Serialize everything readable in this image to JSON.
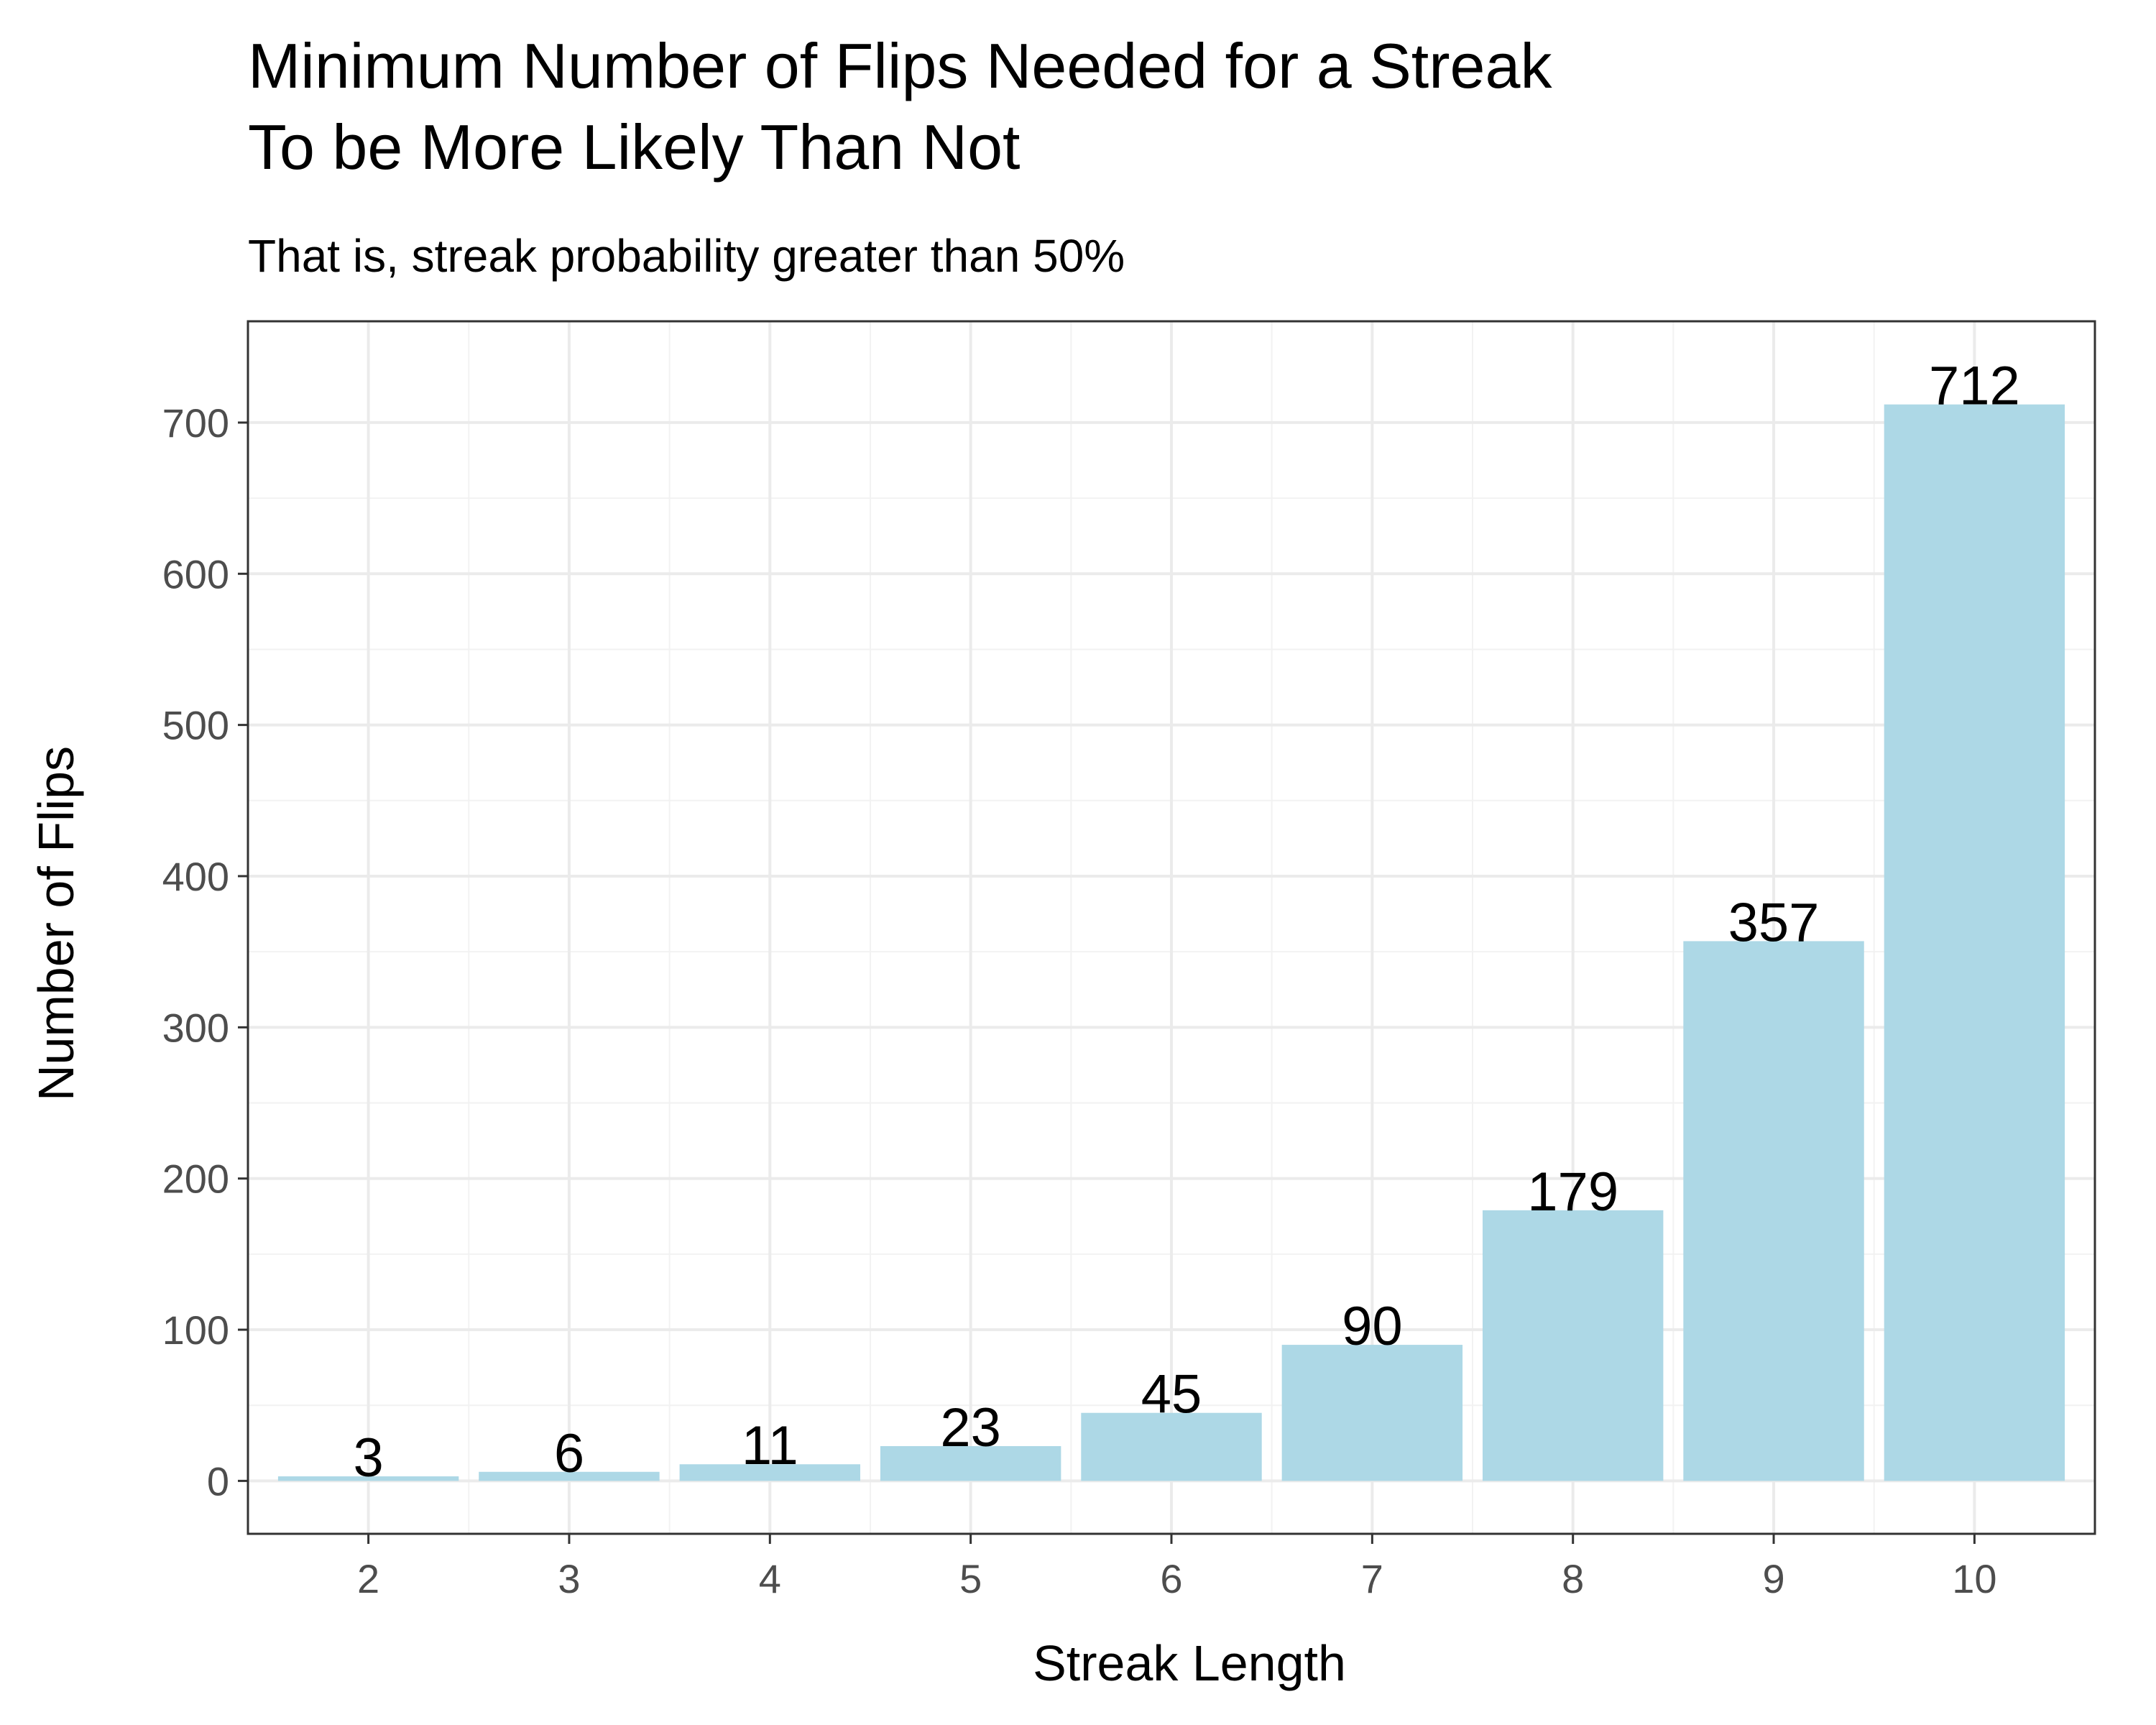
{
  "chart_data": {
    "type": "bar",
    "title_lines": [
      "Minimum Number of Flips Needed for a Streak",
      "To be More Likely Than Not"
    ],
    "subtitle": "That is, streak probability greater than 50%",
    "xlabel": "Streak Length",
    "ylabel": "Number of Flips",
    "categories": [
      "2",
      "3",
      "4",
      "5",
      "6",
      "7",
      "8",
      "9",
      "10"
    ],
    "values": [
      3,
      6,
      11,
      23,
      45,
      90,
      179,
      357,
      712
    ],
    "data_labels": [
      "3",
      "6",
      "11",
      "23",
      "45",
      "90",
      "179",
      "357",
      "712"
    ],
    "ylim": [
      -35,
      767
    ],
    "yticks": [
      0,
      100,
      200,
      300,
      400,
      500,
      600,
      700
    ],
    "ytick_labels": [
      "0",
      "100",
      "200",
      "300",
      "400",
      "500",
      "600",
      "700"
    ],
    "bar_color": "#add8e6",
    "grid": true,
    "legend": "none"
  }
}
